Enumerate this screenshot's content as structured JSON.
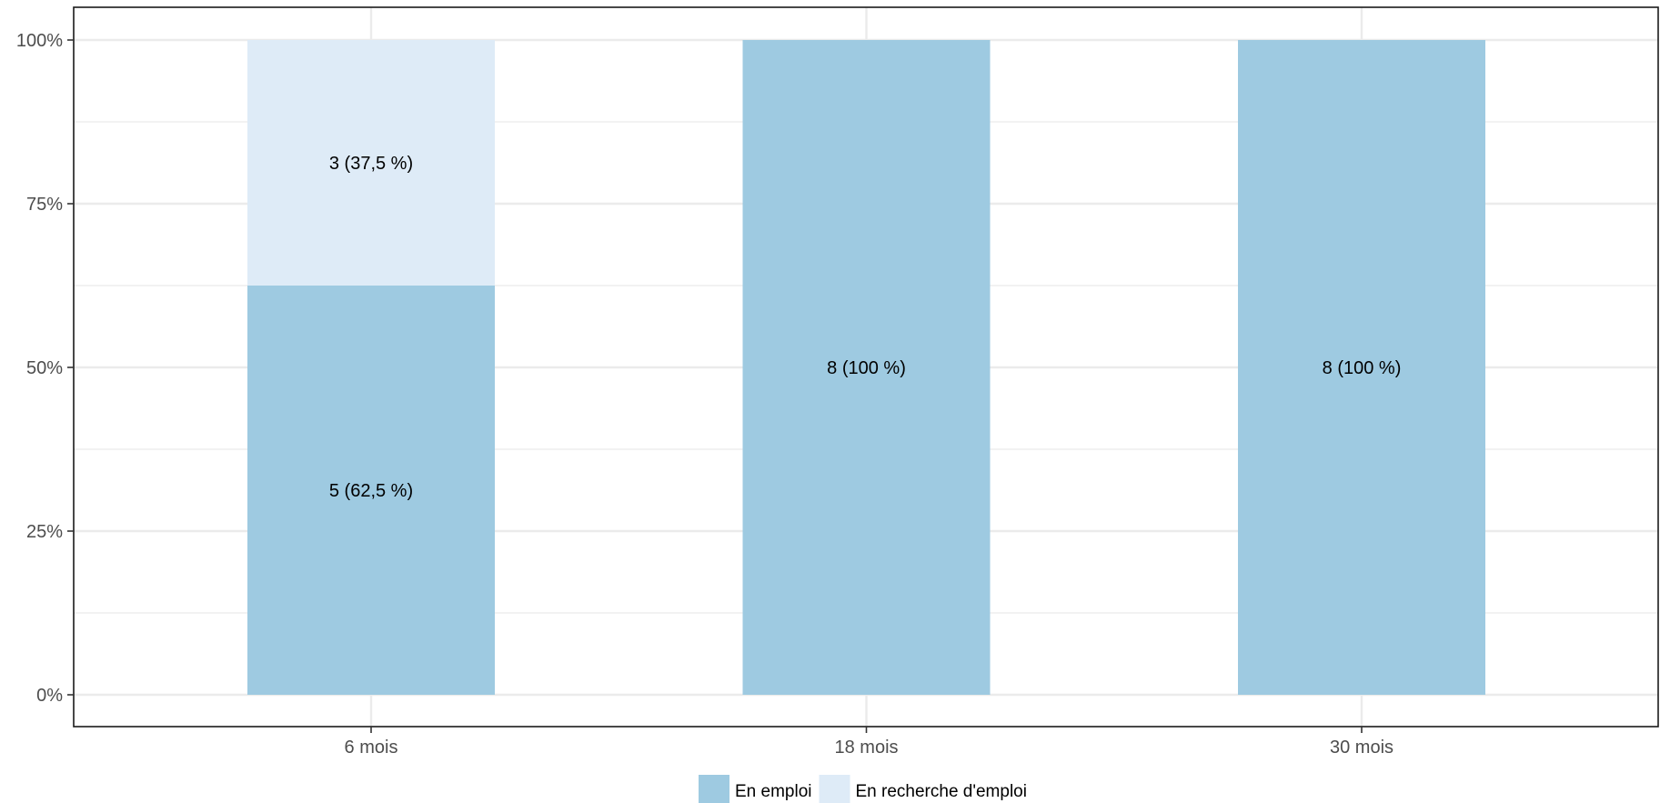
{
  "chart_data": {
    "type": "bar",
    "stacked": true,
    "percent": true,
    "title": "",
    "xlabel": "",
    "ylabel": "",
    "categories": [
      "6 mois",
      "18 mois",
      "30 mois"
    ],
    "ylim": [
      0,
      100
    ],
    "y_ticks": [
      0,
      25,
      50,
      75,
      100
    ],
    "y_tick_labels": [
      "0%",
      "25%",
      "50%",
      "75%",
      "100%"
    ],
    "grid": true,
    "legend_position": "bottom",
    "series": [
      {
        "name": "En emploi",
        "color": "#9ecae1",
        "counts": [
          5,
          8,
          8
        ],
        "values": [
          62.5,
          100,
          100
        ],
        "labels": [
          "5 (62,5 %)",
          "8 (100 %)",
          "8 (100 %)"
        ]
      },
      {
        "name": "En recherche d'emploi",
        "color": "#deebf7",
        "counts": [
          3,
          0,
          0
        ],
        "values": [
          37.5,
          0,
          0
        ],
        "labels": [
          "3 (37,5 %)",
          "",
          ""
        ]
      }
    ]
  }
}
